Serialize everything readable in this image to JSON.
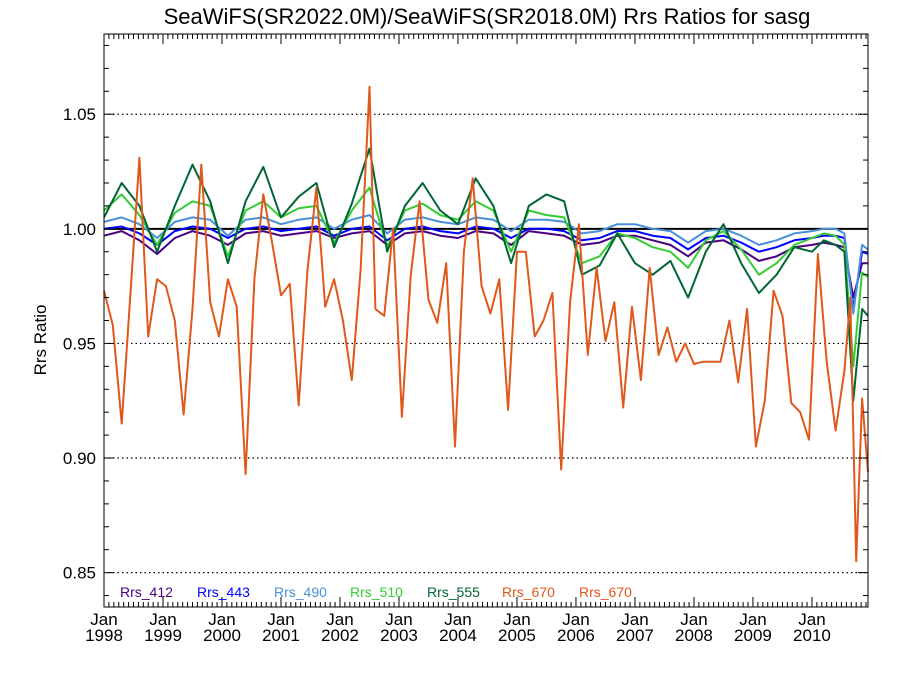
{
  "chart_data": {
    "type": "line",
    "title": "SeaWiFS(SR2022.0M)/SeaWiFS(SR2018.0M)  Rrs Ratios for sasg",
    "xlabel": "",
    "ylabel": "Rrs Ratio",
    "xlim": [
      1998.0,
      2010.95
    ],
    "ylim": [
      0.835,
      1.085
    ],
    "x_ticks": [
      {
        "year": 1998,
        "month": "Jan",
        "label": "1998"
      },
      {
        "year": 1999,
        "month": "Jan",
        "label": "1999"
      },
      {
        "year": 2000,
        "month": "Jan",
        "label": "2000"
      },
      {
        "year": 2001,
        "month": "Jan",
        "label": "2001"
      },
      {
        "year": 2002,
        "month": "Jan",
        "label": "2002"
      },
      {
        "year": 2003,
        "month": "Jan",
        "label": "2003"
      },
      {
        "year": 2004,
        "month": "Jan",
        "label": "2004"
      },
      {
        "year": 2005,
        "month": "Jan",
        "label": "2005"
      },
      {
        "year": 2006,
        "month": "Jan",
        "label": "2006"
      },
      {
        "year": 2007,
        "month": "Jan",
        "label": "2007"
      },
      {
        "year": 2008,
        "month": "Jan",
        "label": "2008"
      },
      {
        "year": 2009,
        "month": "Jan",
        "label": "2009"
      },
      {
        "year": 2010,
        "month": "Jan",
        "label": "2010"
      }
    ],
    "y_ticks": [
      0.85,
      0.9,
      0.95,
      1.0,
      1.05
    ],
    "y_tick_labels": [
      "0.85",
      "0.90",
      "0.95",
      "1.00",
      "1.05"
    ],
    "grid": "dotted horizontal at major y ticks",
    "reference_line": 1.0,
    "legend_position": "bottom-left inside plot",
    "series": [
      {
        "name": "Rrs_412",
        "color": "#4b0082",
        "x": [
          1998.0,
          1998.3,
          1998.6,
          1998.9,
          1999.2,
          1999.5,
          1999.8,
          2000.1,
          2000.4,
          2000.7,
          2001.0,
          2001.3,
          2001.6,
          2001.9,
          2002.2,
          2002.5,
          2002.8,
          2003.1,
          2003.4,
          2003.7,
          2004.0,
          2004.3,
          2004.6,
          2004.9,
          2005.2,
          2005.5,
          2005.8,
          2006.1,
          2006.4,
          2006.7,
          2007.0,
          2007.3,
          2007.6,
          2007.9,
          2008.2,
          2008.5,
          2008.8,
          2009.1,
          2009.4,
          2009.7,
          2010.0,
          2010.2,
          2010.4,
          2010.55,
          2010.7,
          2010.85,
          2010.95
        ],
        "y": [
          0.997,
          0.999,
          0.995,
          0.989,
          0.996,
          0.999,
          0.997,
          0.993,
          0.998,
          0.999,
          0.997,
          0.998,
          0.999,
          0.996,
          0.998,
          0.999,
          0.993,
          0.998,
          0.999,
          0.997,
          0.996,
          0.999,
          0.998,
          0.993,
          0.999,
          0.998,
          0.997,
          0.993,
          0.994,
          0.997,
          0.997,
          0.995,
          0.993,
          0.988,
          0.994,
          0.995,
          0.991,
          0.986,
          0.988,
          0.992,
          0.993,
          0.994,
          0.993,
          0.992,
          0.97,
          0.985,
          0.985
        ]
      },
      {
        "name": "Rrs_443",
        "color": "#0000ff",
        "x": [
          1998.0,
          1998.3,
          1998.6,
          1998.9,
          1999.2,
          1999.5,
          1999.8,
          2000.1,
          2000.4,
          2000.7,
          2001.0,
          2001.3,
          2001.6,
          2001.9,
          2002.2,
          2002.5,
          2002.8,
          2003.1,
          2003.4,
          2003.7,
          2004.0,
          2004.3,
          2004.6,
          2004.9,
          2005.2,
          2005.5,
          2005.8,
          2006.1,
          2006.4,
          2006.7,
          2007.0,
          2007.3,
          2007.6,
          2007.9,
          2008.2,
          2008.5,
          2008.8,
          2009.1,
          2009.4,
          2009.7,
          2010.0,
          2010.2,
          2010.4,
          2010.55,
          2010.7,
          2010.85,
          2010.95
        ],
        "y": [
          1.0,
          1.001,
          0.998,
          0.993,
          0.999,
          1.001,
          1.0,
          0.996,
          1.0,
          1.001,
          0.999,
          1.0,
          1.001,
          0.997,
          1.0,
          1.001,
          0.995,
          1.0,
          1.001,
          0.999,
          0.998,
          1.001,
          1.0,
          0.996,
          1.0,
          1.0,
          0.999,
          0.995,
          0.996,
          0.999,
          0.999,
          0.997,
          0.996,
          0.991,
          0.996,
          0.997,
          0.994,
          0.99,
          0.992,
          0.995,
          0.996,
          0.997,
          0.997,
          0.996,
          0.965,
          0.99,
          0.989
        ]
      },
      {
        "name": "Rrs_490",
        "color": "#4a90d9",
        "x": [
          1998.0,
          1998.3,
          1998.6,
          1998.9,
          1999.2,
          1999.5,
          1999.8,
          2000.1,
          2000.4,
          2000.7,
          2001.0,
          2001.3,
          2001.6,
          2001.9,
          2002.2,
          2002.5,
          2002.8,
          2003.1,
          2003.4,
          2003.7,
          2004.0,
          2004.3,
          2004.6,
          2004.9,
          2005.2,
          2005.5,
          2005.8,
          2006.1,
          2006.4,
          2006.7,
          2007.0,
          2007.3,
          2007.6,
          2007.9,
          2008.2,
          2008.5,
          2008.8,
          2009.1,
          2009.4,
          2009.7,
          2010.0,
          2010.2,
          2010.4,
          2010.55,
          2010.7,
          2010.85,
          2010.95
        ],
        "y": [
          1.003,
          1.005,
          1.002,
          0.996,
          1.003,
          1.005,
          1.004,
          0.997,
          1.004,
          1.005,
          1.002,
          1.004,
          1.005,
          1.0,
          1.004,
          1.006,
          0.998,
          1.004,
          1.005,
          1.003,
          1.002,
          1.005,
          1.004,
          0.999,
          1.004,
          1.004,
          1.003,
          0.998,
          0.999,
          1.002,
          1.002,
          1.0,
          0.999,
          0.994,
          0.999,
          1.0,
          0.997,
          0.993,
          0.995,
          0.998,
          0.999,
          1.0,
          1.0,
          0.998,
          0.963,
          0.993,
          0.991
        ]
      },
      {
        "name": "Rrs_510",
        "color": "#33cc33",
        "x": [
          1998.0,
          1998.3,
          1998.6,
          1998.9,
          1999.2,
          1999.5,
          1999.8,
          2000.1,
          2000.4,
          2000.7,
          2001.0,
          2001.3,
          2001.6,
          2001.9,
          2002.2,
          2002.5,
          2002.8,
          2003.1,
          2003.4,
          2003.7,
          2004.0,
          2004.3,
          2004.6,
          2004.9,
          2005.2,
          2005.5,
          2005.8,
          2006.1,
          2006.4,
          2006.7,
          2007.0,
          2007.3,
          2007.6,
          2007.9,
          2008.2,
          2008.5,
          2008.8,
          2009.1,
          2009.4,
          2009.7,
          2010.0,
          2010.2,
          2010.4,
          2010.55,
          2010.7,
          2010.85,
          2010.95
        ],
        "y": [
          1.008,
          1.015,
          1.006,
          0.993,
          1.007,
          1.012,
          1.01,
          0.988,
          1.008,
          1.012,
          1.005,
          1.009,
          1.01,
          0.994,
          1.008,
          1.018,
          0.992,
          1.008,
          1.011,
          1.006,
          1.004,
          1.012,
          1.008,
          0.99,
          1.008,
          1.006,
          1.005,
          0.985,
          0.988,
          0.998,
          0.996,
          0.992,
          0.99,
          0.983,
          0.995,
          0.999,
          0.991,
          0.98,
          0.985,
          0.993,
          0.996,
          0.998,
          0.997,
          0.993,
          0.94,
          0.981,
          0.979
        ]
      },
      {
        "name": "Rrs_555",
        "color": "#006633",
        "x": [
          1998.0,
          1998.3,
          1998.6,
          1998.9,
          1999.2,
          1999.5,
          1999.8,
          2000.1,
          2000.4,
          2000.7,
          2001.0,
          2001.3,
          2001.6,
          2001.9,
          2002.2,
          2002.5,
          2002.8,
          2003.1,
          2003.4,
          2003.7,
          2004.0,
          2004.3,
          2004.6,
          2004.9,
          2005.2,
          2005.5,
          2005.8,
          2006.1,
          2006.4,
          2006.7,
          2007.0,
          2007.3,
          2007.6,
          2007.9,
          2008.2,
          2008.5,
          2008.8,
          2009.1,
          2009.4,
          2009.7,
          2010.0,
          2010.2,
          2010.4,
          2010.55,
          2010.7,
          2010.85,
          2010.95
        ],
        "y": [
          1.005,
          1.02,
          1.01,
          0.99,
          1.01,
          1.028,
          1.012,
          0.985,
          1.012,
          1.027,
          1.005,
          1.014,
          1.02,
          0.992,
          1.011,
          1.035,
          0.99,
          1.01,
          1.02,
          1.008,
          1.002,
          1.022,
          1.01,
          0.985,
          1.01,
          1.015,
          1.012,
          0.98,
          0.984,
          0.998,
          0.985,
          0.98,
          0.986,
          0.97,
          0.99,
          1.002,
          0.985,
          0.972,
          0.98,
          0.992,
          0.99,
          0.995,
          0.993,
          0.99,
          0.925,
          0.965,
          0.962
        ]
      },
      {
        "name": "Rrs_670",
        "color": "#e0581a",
        "x": [
          1998.0,
          1998.15,
          1998.3,
          1998.45,
          1998.6,
          1998.75,
          1998.9,
          1999.05,
          1999.2,
          1999.35,
          1999.5,
          1999.65,
          1999.8,
          1999.95,
          2000.1,
          2000.25,
          2000.4,
          2000.55,
          2000.7,
          2000.85,
          2001.0,
          2001.15,
          2001.3,
          2001.45,
          2001.6,
          2001.75,
          2001.9,
          2002.05,
          2002.2,
          2002.35,
          2002.5,
          2002.6,
          2002.75,
          2002.9,
          2003.05,
          2003.2,
          2003.35,
          2003.5,
          2003.65,
          2003.8,
          2003.95,
          2004.1,
          2004.25,
          2004.4,
          2004.55,
          2004.7,
          2004.85,
          2005.0,
          2005.15,
          2005.3,
          2005.45,
          2005.6,
          2005.75,
          2005.9,
          2006.05,
          2006.2,
          2006.35,
          2006.5,
          2006.65,
          2006.8,
          2006.95,
          2007.1,
          2007.25,
          2007.4,
          2007.55,
          2007.7,
          2007.85,
          2008.0,
          2008.15,
          2008.3,
          2008.45,
          2008.6,
          2008.75,
          2008.9,
          2009.05,
          2009.2,
          2009.35,
          2009.5,
          2009.65,
          2009.8,
          2009.95,
          2010.1,
          2010.25,
          2010.4,
          2010.55,
          2010.65,
          2010.75,
          2010.85,
          2010.95
        ],
        "y": [
          0.973,
          0.958,
          0.915,
          0.972,
          1.031,
          0.953,
          0.978,
          0.975,
          0.96,
          0.919,
          0.965,
          1.028,
          0.968,
          0.953,
          0.978,
          0.966,
          0.893,
          0.978,
          1.015,
          0.994,
          0.971,
          0.976,
          0.923,
          0.982,
          1.018,
          0.966,
          0.978,
          0.96,
          0.934,
          0.982,
          1.062,
          0.965,
          0.962,
          1.0,
          0.918,
          0.98,
          1.012,
          0.969,
          0.959,
          0.985,
          0.905,
          0.99,
          1.022,
          0.975,
          0.963,
          0.978,
          0.921,
          0.99,
          0.99,
          0.953,
          0.96,
          0.972,
          0.895,
          0.968,
          1.002,
          0.945,
          0.983,
          0.951,
          0.968,
          0.922,
          0.966,
          0.934,
          0.983,
          0.945,
          0.957,
          0.942,
          0.95,
          0.941,
          0.942,
          0.942,
          0.942,
          0.96,
          0.933,
          0.965,
          0.905,
          0.925,
          0.973,
          0.962,
          0.924,
          0.92,
          0.908,
          0.989,
          0.942,
          0.912,
          0.938,
          0.97,
          0.855,
          0.926,
          0.894
        ]
      }
    ],
    "legend": [
      {
        "label": "Rrs_412",
        "color": "#4b0082"
      },
      {
        "label": "Rrs_443",
        "color": "#0000ff"
      },
      {
        "label": "Rrs_490",
        "color": "#4a90d9"
      },
      {
        "label": "Rrs_510",
        "color": "#33cc33"
      },
      {
        "label": "Rrs_555",
        "color": "#006633"
      },
      {
        "label": "Rrs_670",
        "color": "#e0581a"
      },
      {
        "label": "Rrs_670",
        "color": "#e0581a"
      }
    ]
  }
}
